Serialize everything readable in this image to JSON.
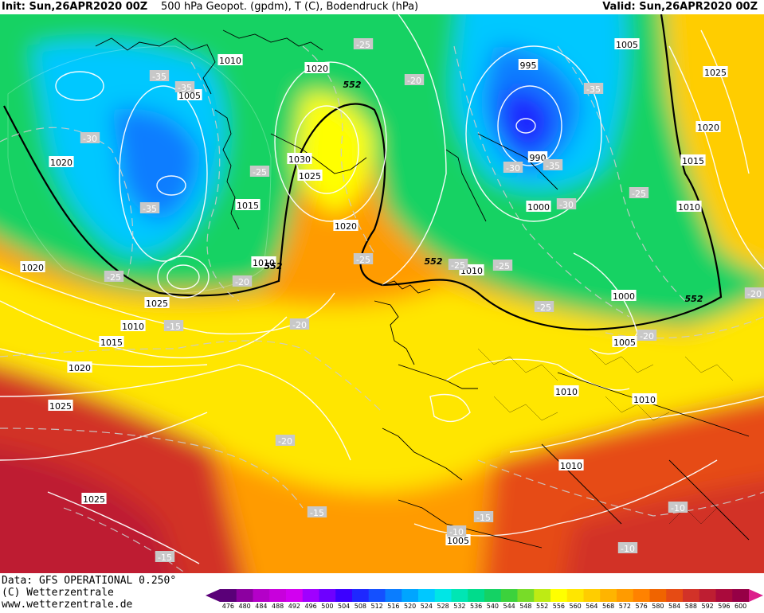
{
  "header": {
    "init": "Init: Sun,26APR2020 00Z",
    "title": "500 hPa Geopot. (gpdm), T (C), Bodendruck (hPa)",
    "valid": "Valid: Sun,26APR2020 00Z"
  },
  "footer": {
    "data_source": "Data: GFS OPERATIONAL 0.250°",
    "copyright": "(C) Wetterzentrale",
    "website": "www.wetterzentrale.de"
  },
  "legend": {
    "values": [
      "476",
      "480",
      "484",
      "488",
      "492",
      "496",
      "500",
      "504",
      "508",
      "512",
      "516",
      "520",
      "524",
      "528",
      "532",
      "536",
      "540",
      "544",
      "548",
      "552",
      "556",
      "560",
      "564",
      "568",
      "572",
      "576",
      "580",
      "584",
      "588",
      "592",
      "596",
      "600"
    ],
    "colors": [
      "#5a0078",
      "#8c00a0",
      "#b400c8",
      "#c800dc",
      "#d200f0",
      "#a000ff",
      "#6e00ff",
      "#3c00ff",
      "#1e28ff",
      "#1450ff",
      "#0a7dff",
      "#00a5ff",
      "#00c8ff",
      "#00e6e6",
      "#00e6b4",
      "#00dc8c",
      "#14d264",
      "#3cd23c",
      "#78dc28",
      "#beeb14",
      "#ffff00",
      "#ffe600",
      "#ffcd00",
      "#ffb400",
      "#ff9b00",
      "#ff8200",
      "#f06400",
      "#e64b14",
      "#d23228",
      "#be1e32",
      "#aa0a3c",
      "#960046"
    ],
    "left_arrow_color": "#5a0078",
    "right_arrow_color": "#dc1e8c"
  },
  "map": {
    "pressure_labels": [
      "1010",
      "1020",
      "1005",
      "1020",
      "1030",
      "1025",
      "1015",
      "1020",
      "1020",
      "1025",
      "995",
      "990",
      "1005",
      "1025",
      "1020",
      "1015",
      "1010",
      "1000",
      "1000",
      "1010",
      "1010",
      "1010",
      "1005",
      "1010",
      "1010",
      "1015",
      "1020",
      "1025",
      "1025",
      "1010",
      "1005"
    ],
    "temperature_labels": [
      "-35",
      "-35",
      "-25",
      "-30",
      "-35",
      "-25",
      "-25",
      "-25",
      "-20",
      "-15",
      "-20",
      "-20",
      "-15",
      "-15",
      "-10",
      "-10",
      "-10",
      "-15",
      "-25",
      "-30",
      "-35",
      "-35",
      "-30",
      "-25",
      "-25",
      "-25",
      "-20",
      "-20",
      "-20"
    ],
    "height_labels": [
      "552",
      "552",
      "552",
      "552"
    ]
  }
}
